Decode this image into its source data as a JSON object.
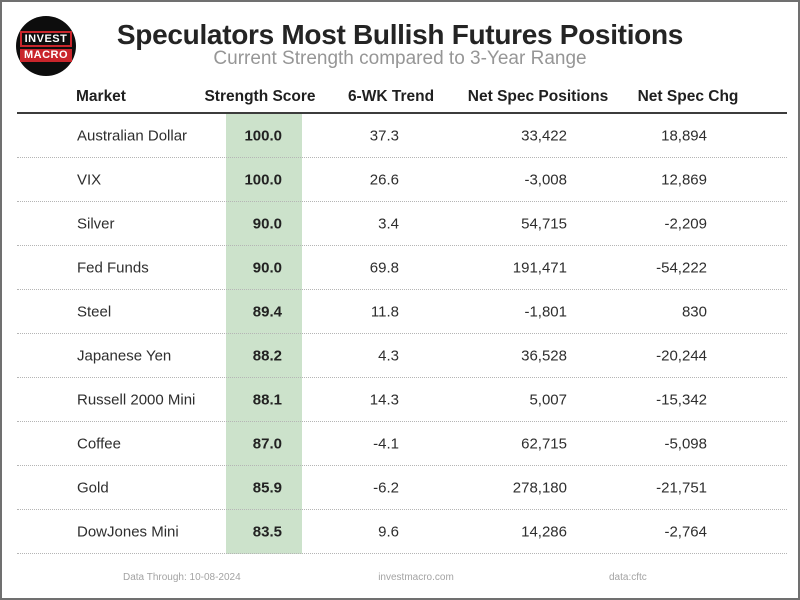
{
  "page": {
    "title": "Speculators Most Bullish Futures Positions",
    "subtitle": "Current Strength compared to 3-Year Range",
    "logo": {
      "line1": "INVEST",
      "line2": "MACRO"
    }
  },
  "table": {
    "headers": {
      "market": "Market",
      "strength": "Strength Score",
      "trend": "6-WK Trend",
      "positions": "Net Spec Positions",
      "change": "Net Spec Chg"
    },
    "rows": [
      {
        "market": "Australian Dollar",
        "strength": "100.0",
        "trend": "37.3",
        "positions": "33,422",
        "change": "18,894"
      },
      {
        "market": "VIX",
        "strength": "100.0",
        "trend": "26.6",
        "positions": "-3,008",
        "change": "12,869"
      },
      {
        "market": "Silver",
        "strength": "90.0",
        "trend": "3.4",
        "positions": "54,715",
        "change": "-2,209"
      },
      {
        "market": "Fed Funds",
        "strength": "90.0",
        "trend": "69.8",
        "positions": "191,471",
        "change": "-54,222"
      },
      {
        "market": "Steel",
        "strength": "89.4",
        "trend": "11.8",
        "positions": "-1,801",
        "change": "830"
      },
      {
        "market": "Japanese Yen",
        "strength": "88.2",
        "trend": "4.3",
        "positions": "36,528",
        "change": "-20,244"
      },
      {
        "market": "Russell 2000 Mini",
        "strength": "88.1",
        "trend": "14.3",
        "positions": "5,007",
        "change": "-15,342"
      },
      {
        "market": "Coffee",
        "strength": "87.0",
        "trend": "-4.1",
        "positions": "62,715",
        "change": "-5,098"
      },
      {
        "market": "Gold",
        "strength": "85.9",
        "trend": "-6.2",
        "positions": "278,180",
        "change": "-21,751"
      },
      {
        "market": "DowJones Mini",
        "strength": "83.5",
        "trend": "9.6",
        "positions": "14,286",
        "change": "-2,764"
      }
    ]
  },
  "footer": {
    "data_through": "Data Through: 10-08-2024",
    "website": "investmacro.com",
    "source": "data:cftc"
  },
  "colors": {
    "strength_highlight_green": "#cce2cb",
    "logo_red": "#c9252b",
    "logo_black": "#0d0d0d",
    "page_border_gray": "#707070",
    "subtitle_gray": "#969696",
    "footer_gray": "#a3a3a3",
    "header_rule_dark": "#3c3c3c",
    "row_rule_dotted": "#b5b5b5"
  },
  "chart_data": {
    "type": "table",
    "title": "Speculators Most Bullish Futures Positions",
    "subtitle": "Current Strength compared to 3-Year Range",
    "columns": [
      "Market",
      "Strength Score",
      "6-WK Trend",
      "Net Spec Positions",
      "Net Spec Chg"
    ],
    "rows": [
      [
        "Australian Dollar",
        100.0,
        37.3,
        33422,
        18894
      ],
      [
        "VIX",
        100.0,
        26.6,
        -3008,
        12869
      ],
      [
        "Silver",
        90.0,
        3.4,
        54715,
        -2209
      ],
      [
        "Fed Funds",
        90.0,
        69.8,
        191471,
        -54222
      ],
      [
        "Steel",
        89.4,
        11.8,
        -1801,
        830
      ],
      [
        "Japanese Yen",
        88.2,
        4.3,
        36528,
        -20244
      ],
      [
        "Russell 2000 Mini",
        88.1,
        14.3,
        5007,
        -15342
      ],
      [
        "Coffee",
        87.0,
        -4.1,
        62715,
        -5098
      ],
      [
        "Gold",
        85.9,
        -6.2,
        278180,
        -21751
      ],
      [
        "DowJones Mini",
        83.5,
        9.6,
        14286,
        -2764
      ]
    ],
    "highlighted_column": "Strength Score",
    "strength_score_range": [
      0,
      100
    ],
    "data_through": "10-08-2024",
    "source": "data:cftc",
    "publisher": "investmacro.com"
  }
}
